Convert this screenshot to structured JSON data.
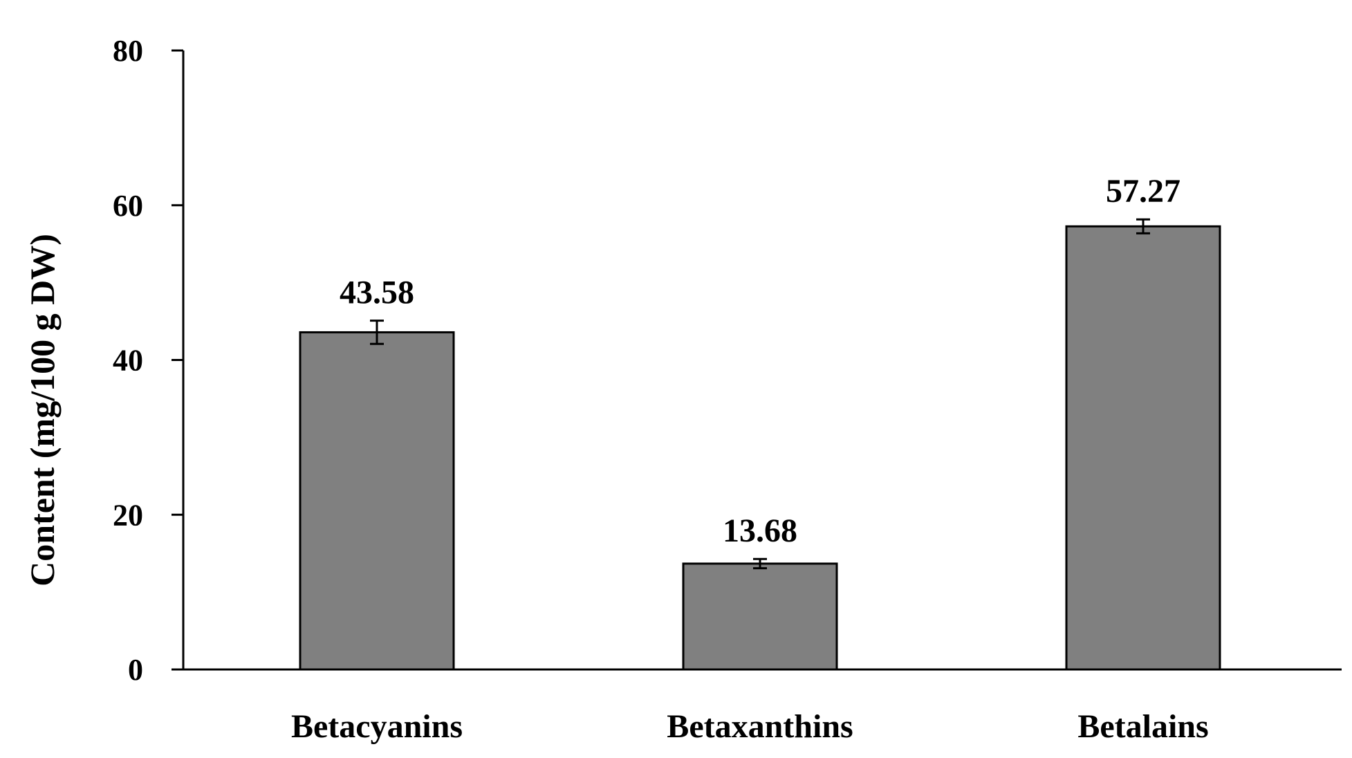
{
  "chart_data": {
    "type": "bar",
    "title": "",
    "xlabel": "",
    "ylabel": "Content (mg/100 g DW)",
    "ylim": [
      0,
      80
    ],
    "yticks": [
      0,
      20,
      40,
      60,
      80
    ],
    "ytick_labels": [
      "0",
      "20",
      "40",
      "60",
      "80"
    ],
    "grid": false,
    "categories": [
      "Betacyanins",
      "Betaxanthins",
      "Betalains"
    ],
    "values": [
      43.58,
      13.68,
      57.27
    ],
    "value_labels": [
      "43.58",
      "13.68",
      "57.27"
    ],
    "errors": [
      1.5,
      0.6,
      0.9
    ],
    "bar_color": "#808080",
    "bar_edge_color": "#000000"
  }
}
